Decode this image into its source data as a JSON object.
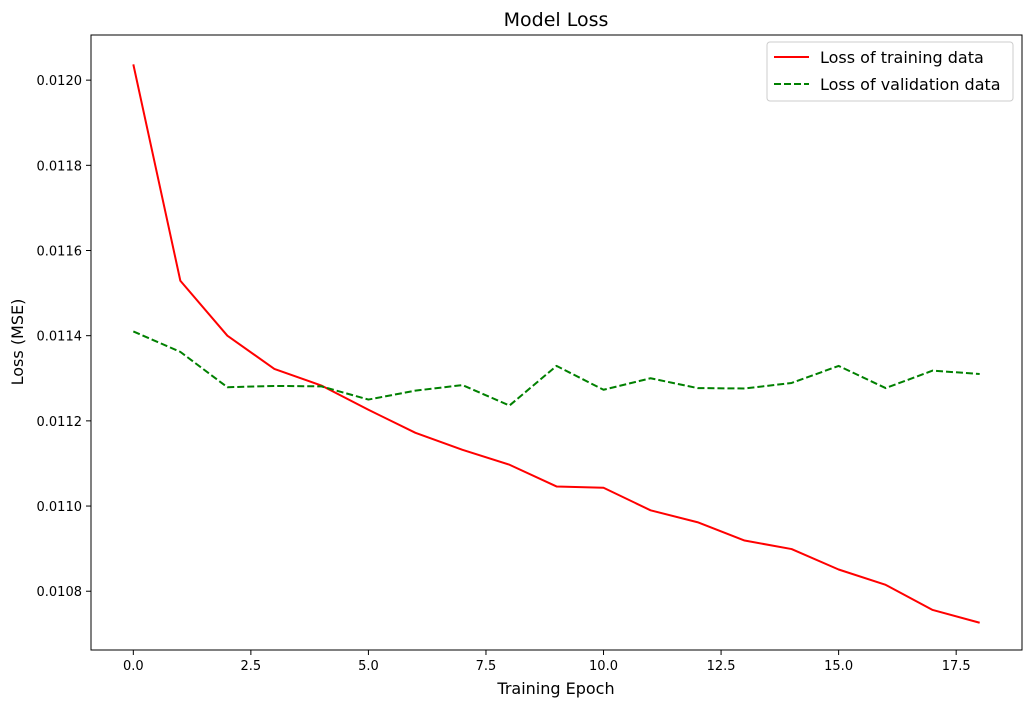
{
  "chart_data": {
    "type": "line",
    "title": "Model Loss",
    "xlabel": "Training Epoch",
    "ylabel": "Loss (MSE)",
    "xlim": [
      -0.9,
      18.9
    ],
    "ylim": [
      0.010662,
      0.012106
    ],
    "x_ticks": [
      0.0,
      2.5,
      5.0,
      7.5,
      10.0,
      12.5,
      15.0,
      17.5
    ],
    "x_tick_labels": [
      "0.0",
      "2.5",
      "5.0",
      "7.5",
      "10.0",
      "12.5",
      "15.0",
      "17.5"
    ],
    "y_ticks": [
      0.0108,
      0.011,
      0.0112,
      0.0114,
      0.0116,
      0.0118,
      0.012
    ],
    "y_tick_labels": [
      "0.0108",
      "0.0110",
      "0.0112",
      "0.0114",
      "0.0116",
      "0.0118",
      "0.0120"
    ],
    "grid": false,
    "legend_position": "upper-right",
    "x": [
      0,
      1,
      2,
      3,
      4,
      5,
      6,
      7,
      8,
      9,
      10,
      11,
      12,
      13,
      14,
      15,
      16,
      17,
      18
    ],
    "series": [
      {
        "name": "Loss of training data",
        "color": "#ff0000",
        "style": "solid",
        "values": [
          0.012037,
          0.011529,
          0.0114,
          0.011322,
          0.011283,
          0.011226,
          0.011172,
          0.011132,
          0.011097,
          0.011046,
          0.011043,
          0.01099,
          0.010962,
          0.010919,
          0.010899,
          0.010851,
          0.010815,
          0.010756,
          0.010726
        ]
      },
      {
        "name": "Loss of validation data",
        "color": "#008000",
        "style": "dashed",
        "values": [
          0.01141,
          0.011362,
          0.011279,
          0.011282,
          0.011281,
          0.01125,
          0.011271,
          0.011284,
          0.011236,
          0.011329,
          0.011273,
          0.0113,
          0.011277,
          0.011276,
          0.011289,
          0.011329,
          0.011277,
          0.011318,
          0.01131
        ]
      }
    ]
  }
}
